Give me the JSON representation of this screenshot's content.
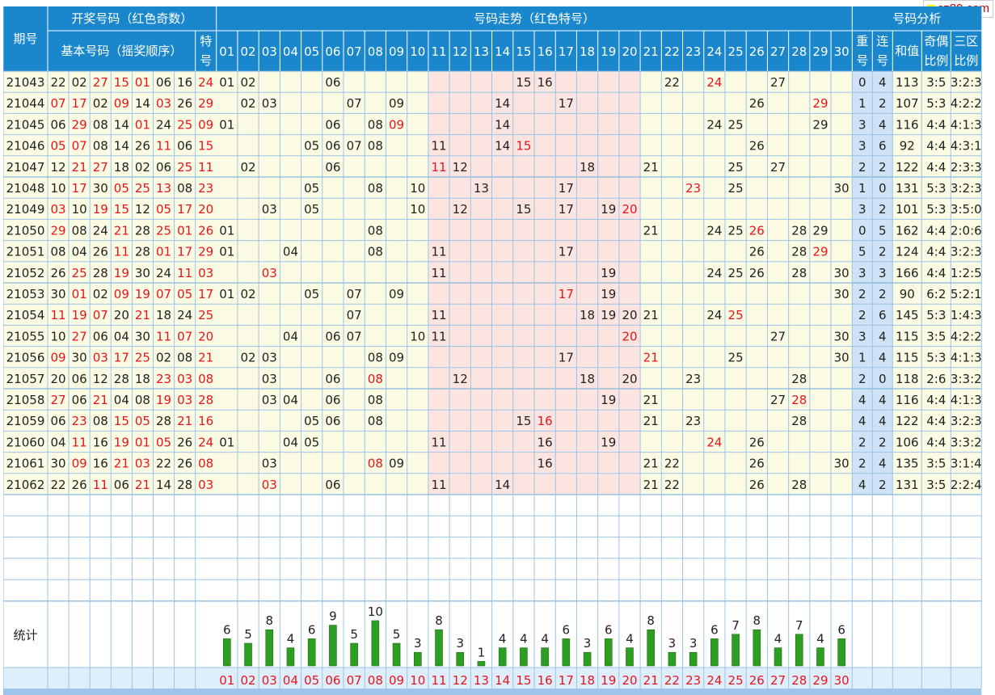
{
  "watermark": "cz89.com",
  "headers": {
    "period": "期号",
    "draw": "开奖号码（红色奇数）",
    "basic": "基本号码（摇奖顺序）",
    "special": "特号",
    "trend": "号码走势（红色特号）",
    "analysis": "号码分析",
    "repeat": "重号",
    "consecutive": "连号",
    "sum": "和值",
    "odd_even": "奇偶比例",
    "three_zone": "三区比例",
    "stats": "统计"
  },
  "colors": {
    "odd": "#e8141c",
    "even": "#222222",
    "header_bg": "#1a87cc",
    "bar": "#2e9e22"
  },
  "rows": [
    {
      "period": "21043",
      "basic": [
        "22",
        "02",
        "27",
        "15",
        "01",
        "06",
        "16"
      ],
      "special": "24",
      "trend": [
        "01",
        "02",
        "06",
        "15",
        "16",
        "22",
        "24",
        "27"
      ],
      "repeat": "0",
      "consecutive": "4",
      "sum": "113",
      "odd_even": "3:5",
      "three_zone": "3:2:3"
    },
    {
      "period": "21044",
      "basic": [
        "07",
        "17",
        "02",
        "09",
        "14",
        "03",
        "26"
      ],
      "special": "29",
      "trend": [
        "02",
        "03",
        "07",
        "09",
        "14",
        "17",
        "26",
        "29"
      ],
      "repeat": "1",
      "consecutive": "2",
      "sum": "107",
      "odd_even": "5:3",
      "three_zone": "4:2:2"
    },
    {
      "period": "21045",
      "basic": [
        "06",
        "29",
        "08",
        "14",
        "01",
        "24",
        "25"
      ],
      "special": "09",
      "trend": [
        "01",
        "06",
        "08",
        "09",
        "14",
        "24",
        "25",
        "29"
      ],
      "repeat": "3",
      "consecutive": "4",
      "sum": "116",
      "odd_even": "4:4",
      "three_zone": "4:1:3"
    },
    {
      "period": "21046",
      "basic": [
        "05",
        "07",
        "08",
        "14",
        "26",
        "11",
        "06"
      ],
      "special": "15",
      "trend": [
        "05",
        "06",
        "07",
        "08",
        "11",
        "14",
        "15",
        "26"
      ],
      "repeat": "3",
      "consecutive": "6",
      "sum": "92",
      "odd_even": "4:4",
      "three_zone": "4:3:1"
    },
    {
      "period": "21047",
      "basic": [
        "12",
        "21",
        "27",
        "18",
        "02",
        "06",
        "25"
      ],
      "special": "11",
      "trend": [
        "02",
        "06",
        "11",
        "12",
        "18",
        "21",
        "25",
        "27"
      ],
      "repeat": "2",
      "consecutive": "2",
      "sum": "122",
      "odd_even": "4:4",
      "three_zone": "2:3:3"
    },
    {
      "period": "21048",
      "basic": [
        "10",
        "17",
        "30",
        "05",
        "25",
        "13",
        "08"
      ],
      "special": "23",
      "trend": [
        "05",
        "08",
        "10",
        "13",
        "17",
        "23",
        "25",
        "30"
      ],
      "repeat": "1",
      "consecutive": "0",
      "sum": "131",
      "odd_even": "5:3",
      "three_zone": "3:2:3"
    },
    {
      "period": "21049",
      "basic": [
        "03",
        "10",
        "19",
        "15",
        "12",
        "05",
        "17"
      ],
      "special": "20",
      "trend": [
        "03",
        "05",
        "10",
        "12",
        "15",
        "17",
        "19",
        "20"
      ],
      "repeat": "3",
      "consecutive": "2",
      "sum": "101",
      "odd_even": "5:3",
      "three_zone": "3:5:0"
    },
    {
      "period": "21050",
      "basic": [
        "29",
        "08",
        "24",
        "21",
        "28",
        "25",
        "01"
      ],
      "special": "26",
      "trend": [
        "01",
        "08",
        "21",
        "24",
        "25",
        "26",
        "28",
        "29"
      ],
      "repeat": "0",
      "consecutive": "5",
      "sum": "162",
      "odd_even": "4:4",
      "three_zone": "2:0:6"
    },
    {
      "period": "21051",
      "basic": [
        "08",
        "04",
        "26",
        "11",
        "28",
        "01",
        "17"
      ],
      "special": "29",
      "trend": [
        "01",
        "04",
        "08",
        "11",
        "17",
        "26",
        "28",
        "29"
      ],
      "repeat": "5",
      "consecutive": "2",
      "sum": "124",
      "odd_even": "4:4",
      "three_zone": "3:2:3"
    },
    {
      "period": "21052",
      "basic": [
        "26",
        "25",
        "28",
        "19",
        "30",
        "24",
        "11"
      ],
      "special": "03",
      "trend": [
        "03",
        "11",
        "19",
        "24",
        "25",
        "26",
        "28",
        "30"
      ],
      "repeat": "3",
      "consecutive": "3",
      "sum": "166",
      "odd_even": "4:4",
      "three_zone": "1:2:5"
    },
    {
      "period": "21053",
      "basic": [
        "30",
        "01",
        "02",
        "09",
        "19",
        "07",
        "05"
      ],
      "special": "17",
      "trend": [
        "01",
        "02",
        "05",
        "07",
        "09",
        "17",
        "19",
        "30"
      ],
      "repeat": "2",
      "consecutive": "2",
      "sum": "90",
      "odd_even": "6:2",
      "three_zone": "5:2:1"
    },
    {
      "period": "21054",
      "basic": [
        "11",
        "19",
        "07",
        "20",
        "21",
        "18",
        "24"
      ],
      "special": "25",
      "trend": [
        "07",
        "11",
        "18",
        "19",
        "20",
        "21",
        "24",
        "25"
      ],
      "repeat": "2",
      "consecutive": "6",
      "sum": "145",
      "odd_even": "5:3",
      "three_zone": "1:4:3"
    },
    {
      "period": "21055",
      "basic": [
        "10",
        "27",
        "06",
        "04",
        "30",
        "11",
        "07"
      ],
      "special": "20",
      "trend": [
        "04",
        "06",
        "07",
        "10",
        "11",
        "20",
        "27",
        "30"
      ],
      "repeat": "3",
      "consecutive": "4",
      "sum": "115",
      "odd_even": "3:5",
      "three_zone": "4:2:2"
    },
    {
      "period": "21056",
      "basic": [
        "09",
        "30",
        "03",
        "17",
        "25",
        "02",
        "08"
      ],
      "special": "21",
      "trend": [
        "02",
        "03",
        "08",
        "09",
        "17",
        "21",
        "25",
        "30"
      ],
      "repeat": "1",
      "consecutive": "4",
      "sum": "115",
      "odd_even": "5:3",
      "three_zone": "4:1:3"
    },
    {
      "period": "21057",
      "basic": [
        "20",
        "06",
        "12",
        "28",
        "18",
        "23",
        "03"
      ],
      "special": "08",
      "trend": [
        "03",
        "06",
        "08",
        "12",
        "18",
        "20",
        "23",
        "28"
      ],
      "repeat": "2",
      "consecutive": "0",
      "sum": "118",
      "odd_even": "2:6",
      "three_zone": "3:3:2"
    },
    {
      "period": "21058",
      "basic": [
        "27",
        "06",
        "21",
        "04",
        "08",
        "19",
        "03"
      ],
      "special": "28",
      "trend": [
        "03",
        "04",
        "06",
        "08",
        "19",
        "21",
        "27",
        "28"
      ],
      "repeat": "4",
      "consecutive": "4",
      "sum": "116",
      "odd_even": "4:4",
      "three_zone": "4:1:3"
    },
    {
      "period": "21059",
      "basic": [
        "06",
        "23",
        "08",
        "15",
        "05",
        "28",
        "21"
      ],
      "special": "16",
      "trend": [
        "05",
        "06",
        "08",
        "15",
        "16",
        "21",
        "23",
        "28"
      ],
      "repeat": "4",
      "consecutive": "4",
      "sum": "122",
      "odd_even": "4:4",
      "three_zone": "3:2:3"
    },
    {
      "period": "21060",
      "basic": [
        "04",
        "11",
        "16",
        "19",
        "01",
        "05",
        "26"
      ],
      "special": "24",
      "trend": [
        "01",
        "04",
        "05",
        "11",
        "16",
        "19",
        "24",
        "26"
      ],
      "repeat": "2",
      "consecutive": "2",
      "sum": "106",
      "odd_even": "4:4",
      "three_zone": "3:3:2"
    },
    {
      "period": "21061",
      "basic": [
        "30",
        "09",
        "16",
        "21",
        "03",
        "22",
        "26"
      ],
      "special": "08",
      "trend": [
        "03",
        "08",
        "09",
        "16",
        "21",
        "22",
        "26",
        "30"
      ],
      "repeat": "2",
      "consecutive": "4",
      "sum": "135",
      "odd_even": "3:5",
      "three_zone": "3:1:4"
    },
    {
      "period": "21062",
      "basic": [
        "22",
        "26",
        "11",
        "06",
        "21",
        "14",
        "28"
      ],
      "special": "03",
      "trend": [
        "03",
        "06",
        "11",
        "14",
        "21",
        "22",
        "26",
        "28"
      ],
      "repeat": "4",
      "consecutive": "2",
      "sum": "131",
      "odd_even": "3:5",
      "three_zone": "2:2:4"
    }
  ],
  "chart_data": {
    "type": "bar",
    "categories": [
      "01",
      "02",
      "03",
      "04",
      "05",
      "06",
      "07",
      "08",
      "09",
      "10",
      "11",
      "12",
      "13",
      "14",
      "15",
      "16",
      "17",
      "18",
      "19",
      "20",
      "21",
      "22",
      "23",
      "24",
      "25",
      "26",
      "27",
      "28",
      "29",
      "30"
    ],
    "values": [
      6,
      5,
      8,
      4,
      6,
      9,
      5,
      10,
      5,
      3,
      8,
      3,
      1,
      4,
      4,
      4,
      6,
      3,
      6,
      4,
      8,
      3,
      3,
      6,
      7,
      8,
      4,
      7,
      4,
      6
    ],
    "title": "统计",
    "ylim": [
      0,
      10
    ]
  }
}
